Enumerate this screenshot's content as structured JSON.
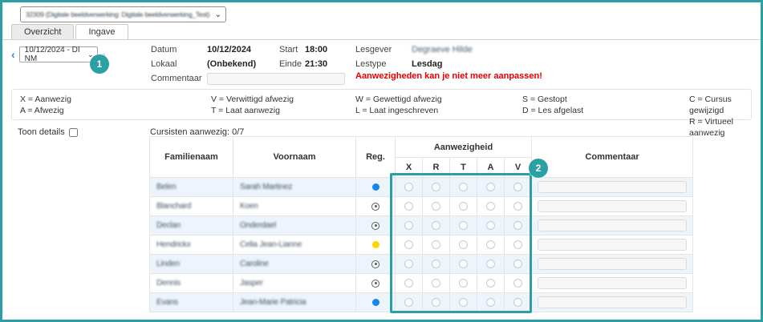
{
  "course_selector": {
    "value": "32309 (Digitale beeldverwerking: Digitale beeldverwerking_Test) (B) -",
    "dropdown_icon": "⌄",
    "redacted": true
  },
  "tabs": {
    "overzicht": "Overzicht",
    "ingave": "Ingave",
    "active": "Ingave"
  },
  "date_nav": {
    "prev_icon": "‹",
    "value": "10/12/2024 - DI NM",
    "dropdown_icon": "⌄",
    "next_icon": "›"
  },
  "session": {
    "datum_label": "Datum",
    "datum_value": "10/12/2024",
    "lokaal_label": "Lokaal",
    "lokaal_value": "(Onbekend)",
    "commentaar_label": "Commentaar",
    "commentaar_value": "",
    "start_label": "Start",
    "start_value": "18:00",
    "einde_label": "Einde",
    "einde_value": "21:30",
    "lesgever_label": "Lesgever",
    "lesgever_value": "Degraeve Hilde",
    "lesgever_redacted": true,
    "lestype_label": "Lestype",
    "lestype_value": "Lesdag",
    "warning": "Aanwezigheden kan je niet meer aanpassen!"
  },
  "legend": {
    "columns": [
      [
        "X = Aanwezig",
        "A = Afwezig"
      ],
      [
        "V = Verwittigd afwezig",
        "T = Laat aanwezig"
      ],
      [
        "W = Gewettigd afwezig",
        "L = Laat ingeschreven"
      ],
      [
        "S = Gestopt",
        "D = Les afgelast"
      ],
      [
        "C = Cursus gewijzigd",
        "R = Virtueel aanwezig"
      ]
    ]
  },
  "filters": {
    "toon_details_label": "Toon details",
    "toon_details_checked": false
  },
  "counter": {
    "cursisten_aanwezig": "Cursisten aanwezig: 0/7"
  },
  "table": {
    "headers": {
      "familienaam": "Familienaam",
      "voornaam": "Voornaam",
      "reg": "Reg.",
      "aanwezigheid": "Aanwezigheid",
      "commentaar": "Commentaar"
    },
    "attendance_options": [
      "X",
      "R",
      "T",
      "A",
      "V"
    ],
    "names_redacted": true,
    "rows": [
      {
        "familienaam": "Belen",
        "voornaam": "Sarah Martinez",
        "reg": "blue-dot",
        "attendance": null,
        "commentaar": ""
      },
      {
        "familienaam": "Blanchard",
        "voornaam": "Koen",
        "reg": "ring-dot",
        "attendance": null,
        "commentaar": ""
      },
      {
        "familienaam": "Declan",
        "voornaam": "Onderdael",
        "reg": "ring-dot",
        "attendance": null,
        "commentaar": ""
      },
      {
        "familienaam": "Hendrickx",
        "voornaam": "Celia Jean-Lianne",
        "reg": "yellow-dot",
        "attendance": null,
        "commentaar": ""
      },
      {
        "familienaam": "Linden",
        "voornaam": "Caroline",
        "reg": "ring-dot",
        "attendance": null,
        "commentaar": ""
      },
      {
        "familienaam": "Dennis",
        "voornaam": "Jasper",
        "reg": "ring-dot",
        "attendance": null,
        "commentaar": ""
      },
      {
        "familienaam": "Evans",
        "voornaam": "Jean-Marie Patricia",
        "reg": "blue-dot",
        "attendance": null,
        "commentaar": ""
      }
    ]
  },
  "annotations": {
    "step_1": "1",
    "step_2": "2"
  },
  "colors": {
    "annotation_teal": "#2aa0a5",
    "accent_blue": "#1e87f0",
    "reg_blue": "#1486f0",
    "reg_yellow": "#ffd400",
    "warning_red": "#e60000",
    "row_alt_blue": "#edf4fb"
  }
}
